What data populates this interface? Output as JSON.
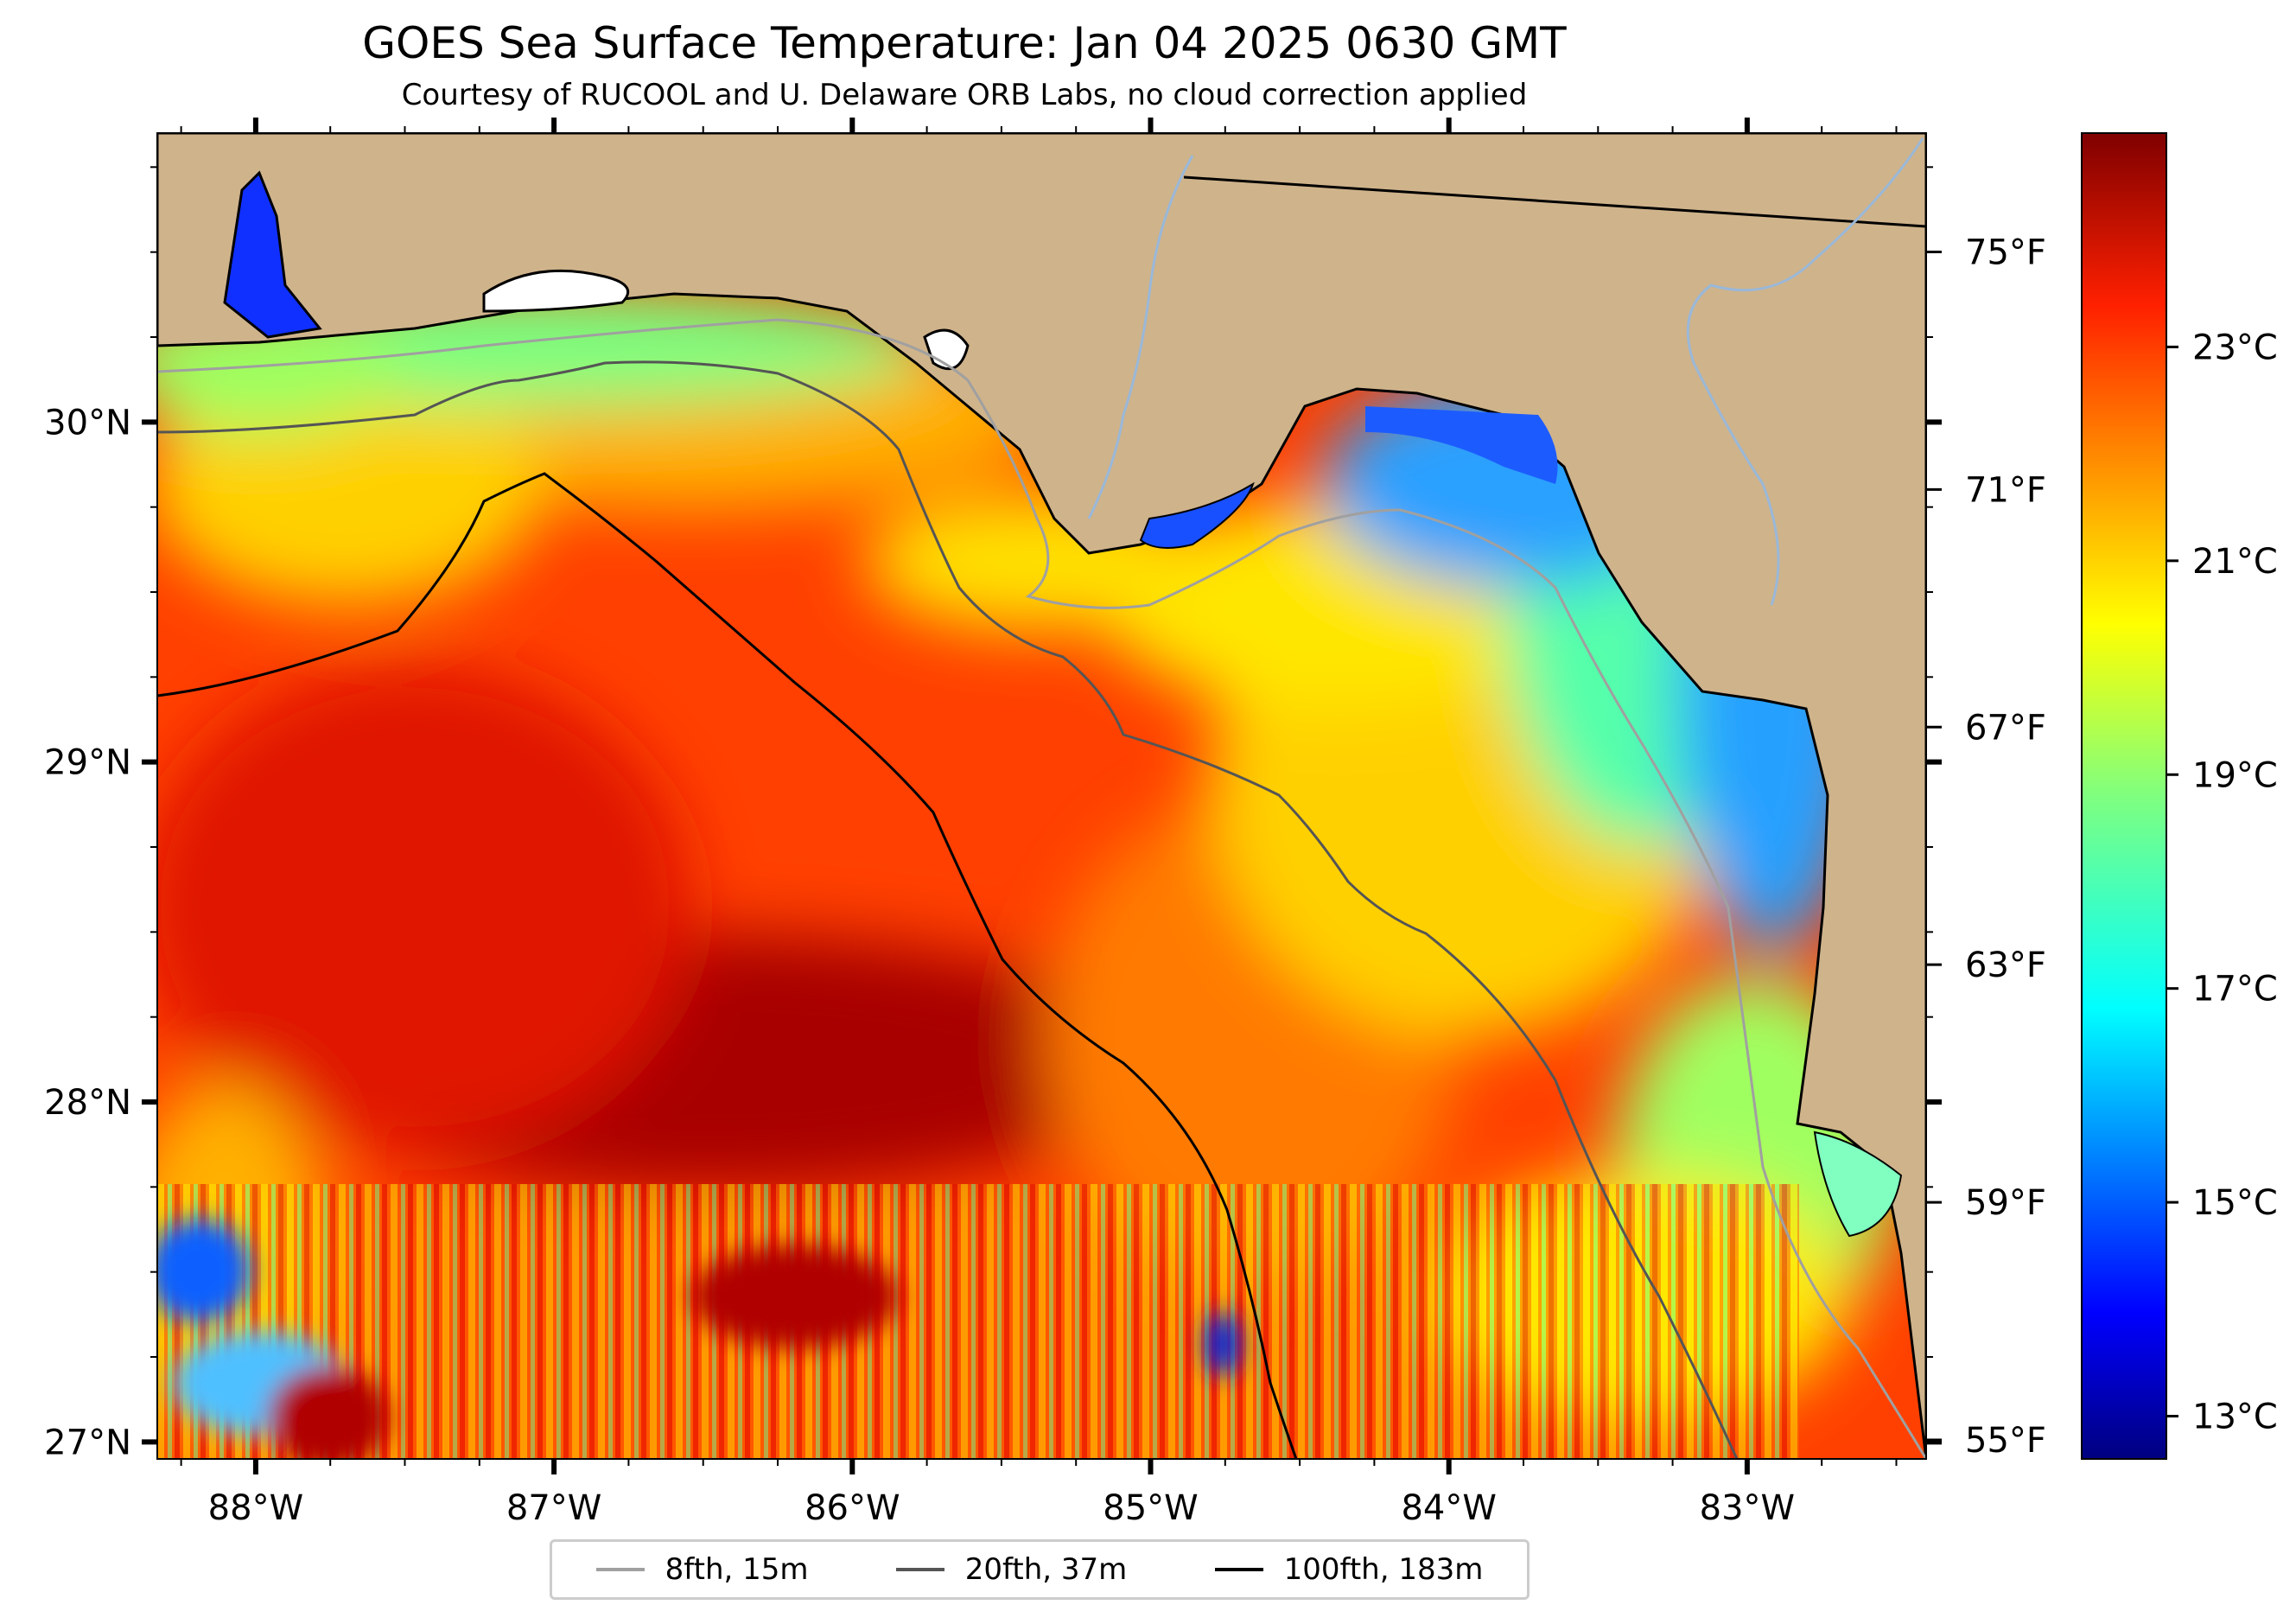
{
  "title": "GOES Sea Surface Temperature: Jan 04 2025 0630 GMT",
  "subtitle": "Courtesy of RUCOOL and U. Delaware ORB Labs, no cloud correction applied",
  "map": {
    "lon_range": [
      -88.33,
      -82.4
    ],
    "lat_range": [
      26.95,
      30.85
    ],
    "lon_ticks": [
      {
        "value": -88,
        "label": "88°W"
      },
      {
        "value": -87,
        "label": "87°W"
      },
      {
        "value": -86,
        "label": "86°W"
      },
      {
        "value": -85,
        "label": "85°W"
      },
      {
        "value": -84,
        "label": "84°W"
      },
      {
        "value": -83,
        "label": "83°W"
      }
    ],
    "lat_ticks": [
      {
        "value": 27,
        "label": "27°N"
      },
      {
        "value": 28,
        "label": "28°N"
      },
      {
        "value": 29,
        "label": "29°N"
      },
      {
        "value": 30,
        "label": "30°N"
      }
    ],
    "fahrenheit_ticks": [
      {
        "value": 55,
        "label": "55°F"
      },
      {
        "value": 59,
        "label": "59°F"
      },
      {
        "value": 63,
        "label": "63°F"
      },
      {
        "value": 67,
        "label": "67°F"
      },
      {
        "value": 71,
        "label": "71°F"
      },
      {
        "value": 75,
        "label": "75°F"
      }
    ],
    "land_color": "#cfb38b",
    "coast_color": "#000000",
    "river_color": "#9ab8d8"
  },
  "colorbar": {
    "min_c": 12.6,
    "max_c": 25.0,
    "colormap": "jet",
    "ticks": [
      {
        "value": 13,
        "label": "13°C"
      },
      {
        "value": 15,
        "label": "15°C"
      },
      {
        "value": 17,
        "label": "17°C"
      },
      {
        "value": 19,
        "label": "19°C"
      },
      {
        "value": 21,
        "label": "21°C"
      },
      {
        "value": 23,
        "label": "23°C"
      }
    ]
  },
  "legend": {
    "items": [
      {
        "label": "8fth, 15m",
        "color": "#a0a0a0"
      },
      {
        "label": "20fth, 37m",
        "color": "#555555"
      },
      {
        "label": "100fth, 183m",
        "color": "#000000"
      }
    ]
  }
}
